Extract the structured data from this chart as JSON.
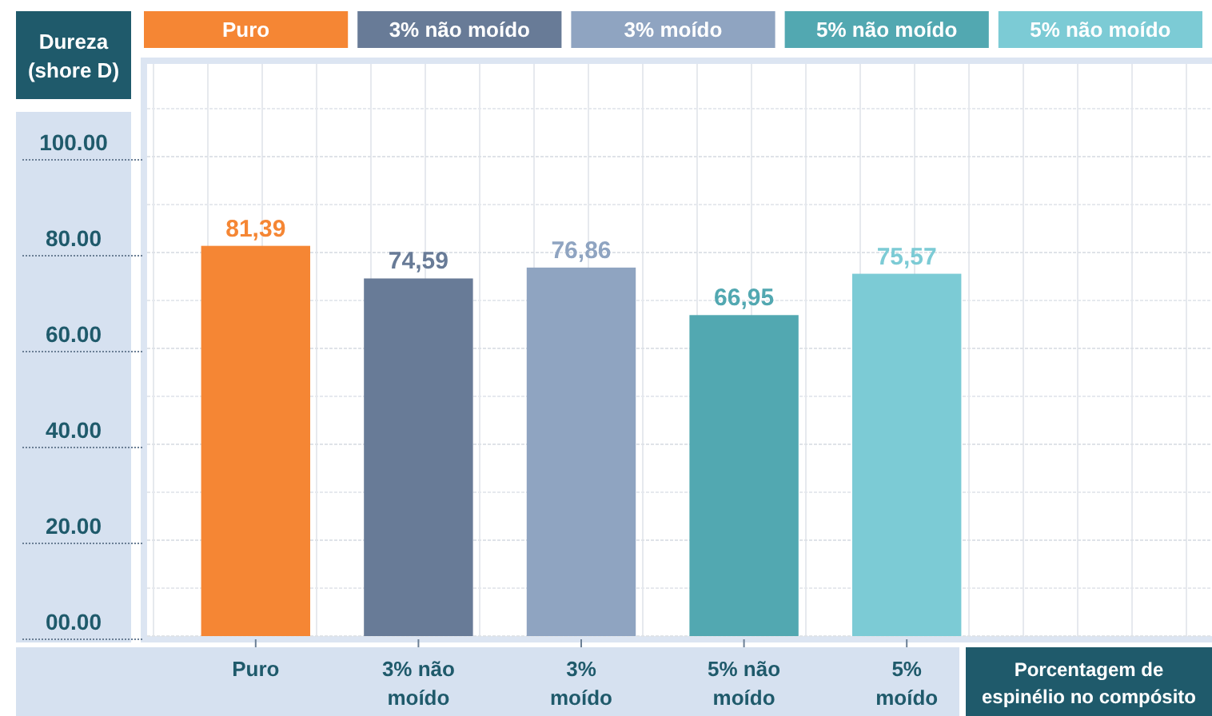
{
  "chart_data": {
    "type": "bar",
    "ylabel": "Dureza (shore D)",
    "xlabel": "Porcentagem de espinélio no compósito",
    "categories": [
      "Puro",
      "3% não moído",
      "3% moído",
      "5% não moído",
      "5% moído"
    ],
    "series": [
      {
        "name": "Puro",
        "color": "#f58634",
        "values": [
          81.39,
          null,
          null,
          null,
          null
        ],
        "value_labels": [
          "81,39",
          null,
          null,
          null,
          null
        ]
      },
      {
        "name": "3% não moído",
        "color": "#687b97",
        "values": [
          null,
          74.59,
          null,
          null,
          null
        ],
        "value_labels": [
          null,
          "74,59",
          null,
          null,
          null
        ]
      },
      {
        "name": "3% moído",
        "color": "#8fa4c1",
        "values": [
          null,
          null,
          76.86,
          null,
          null
        ],
        "value_labels": [
          null,
          null,
          "76,86",
          null,
          null
        ]
      },
      {
        "name": "5% não moído",
        "color": "#52a8b1",
        "values": [
          null,
          null,
          null,
          66.95,
          null
        ],
        "value_labels": [
          null,
          null,
          null,
          "66,95",
          null
        ]
      },
      {
        "name": "5% não moído",
        "color": "#7ccbd5",
        "values": [
          null,
          null,
          null,
          null,
          75.57
        ],
        "value_labels": [
          null,
          null,
          null,
          null,
          "75,57"
        ]
      }
    ],
    "ylim": [
      0,
      120
    ],
    "yticks": [
      {
        "value": 0,
        "label": "00.00"
      },
      {
        "value": 20,
        "label": "20.00"
      },
      {
        "value": 40,
        "label": "40.00"
      },
      {
        "value": 60,
        "label": "60.00"
      },
      {
        "value": 80,
        "label": "80.00"
      },
      {
        "value": 100,
        "label": "100.00"
      }
    ],
    "grid": true,
    "legend": "top"
  }
}
